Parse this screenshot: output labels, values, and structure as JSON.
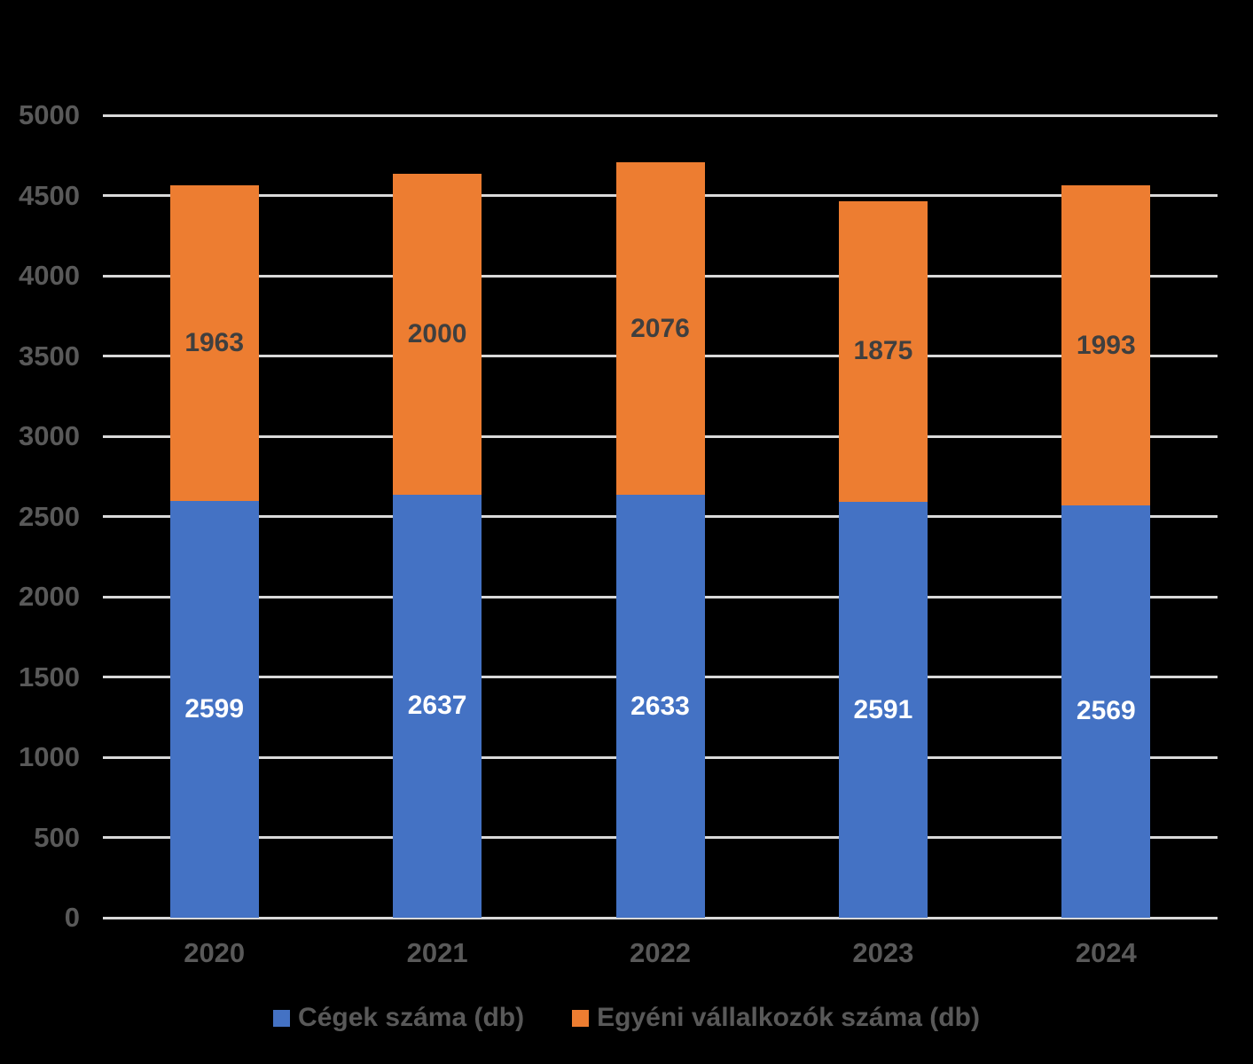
{
  "chart_data": {
    "type": "bar",
    "stacked": true,
    "title": "",
    "xlabel": "",
    "ylabel": "",
    "categories": [
      "2020",
      "2021",
      "2022",
      "2023",
      "2024"
    ],
    "series": [
      {
        "name": "Cégek száma (db)",
        "color": "#4472C4",
        "label_color": "#FFFFFF",
        "values": [
          2599,
          2637,
          2633,
          2591,
          2569
        ]
      },
      {
        "name": "Egyéni vállalkozók száma (db)",
        "color": "#ED7D31",
        "label_color": "#3F3F3F",
        "values": [
          1963,
          2000,
          2076,
          1875,
          1993
        ]
      }
    ],
    "totals": [
      4562,
      4637,
      4709,
      4466,
      4562
    ],
    "ylim": [
      0,
      5000
    ],
    "yticks": [
      0,
      500,
      1000,
      1500,
      2000,
      2500,
      3000,
      3500,
      4000,
      4500,
      5000
    ],
    "grid": true,
    "gridline_color": "#D9D9D9",
    "axis_label_color": "#595959",
    "background_color": "#000000",
    "legend_position": "bottom",
    "legend_text_color": "#595959",
    "data_labels_visible": true
  }
}
